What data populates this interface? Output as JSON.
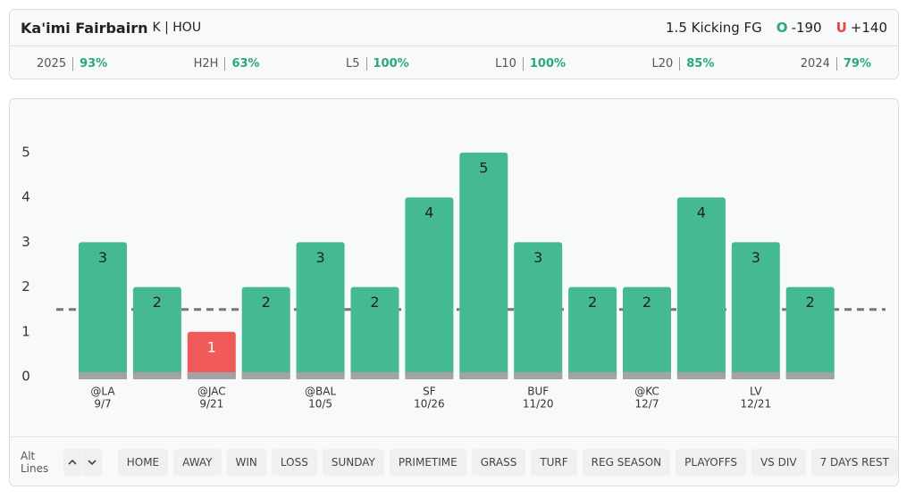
{
  "header": {
    "player": "Ka'imi Fairbairn",
    "position": "K | HOU",
    "prop": "1.5 Kicking FG",
    "over": {
      "label": "O",
      "odds": "-190"
    },
    "under": {
      "label": "U",
      "odds": "+140"
    }
  },
  "stats": [
    {
      "label": "2025",
      "value": "93%"
    },
    {
      "label": "H2H",
      "value": "63%"
    },
    {
      "label": "L5",
      "value": "100%"
    },
    {
      "label": "L10",
      "value": "100%"
    },
    {
      "label": "L20",
      "value": "85%"
    },
    {
      "label": "2024",
      "value": "79%"
    }
  ],
  "chart_data": {
    "type": "bar",
    "categories": [
      "@LA",
      null,
      "@JAC",
      null,
      "@BAL",
      null,
      "SF",
      null,
      "BUF",
      null,
      "@KC",
      null,
      "LV",
      null
    ],
    "dates": [
      "9/7",
      null,
      "9/21",
      null,
      "10/5",
      null,
      "10/26",
      null,
      "11/20",
      null,
      "12/7",
      null,
      "12/21",
      null
    ],
    "values": [
      3,
      2,
      1,
      2,
      3,
      2,
      4,
      5,
      3,
      2,
      2,
      4,
      3,
      2
    ],
    "line": 1.5,
    "ylim": [
      0,
      5
    ],
    "yticks": [
      0,
      1,
      2,
      3,
      4,
      5
    ],
    "colors": {
      "over": "#45b994",
      "under": "#f05a5a"
    }
  },
  "filters": {
    "label": "Alt Lines",
    "buttons": [
      "HOME",
      "AWAY",
      "WIN",
      "LOSS",
      "SUNDAY",
      "PRIMETIME",
      "GRASS",
      "TURF",
      "REG SEASON",
      "PLAYOFFS",
      "VS DIV",
      "7 DAYS REST"
    ]
  }
}
